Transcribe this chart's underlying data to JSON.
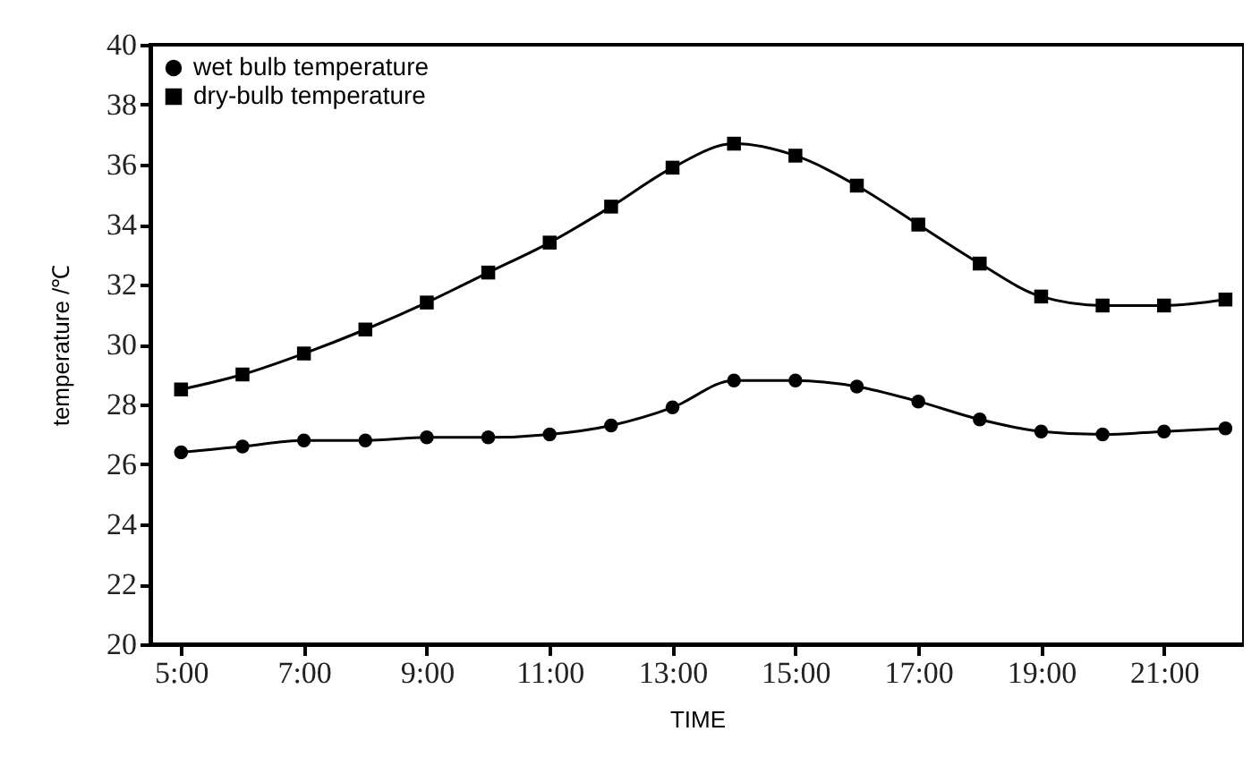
{
  "chart_data": {
    "type": "line",
    "xlabel": "TIME",
    "ylabel": "temperature /℃",
    "x": [
      5,
      6,
      7,
      8,
      9,
      10,
      11,
      12,
      13,
      14,
      15,
      16,
      17,
      18,
      19,
      20,
      21,
      22
    ],
    "series": [
      {
        "name": "wet bulb temperature",
        "color": "#000000",
        "marker": "circle",
        "values": [
          26.4,
          26.6,
          26.8,
          26.8,
          26.9,
          26.9,
          27.0,
          27.3,
          27.9,
          28.8,
          28.8,
          28.6,
          28.1,
          27.5,
          27.1,
          27.0,
          27.1,
          27.2
        ]
      },
      {
        "name": "dry-bulb temperature",
        "color": "#000000",
        "marker": "square",
        "values": [
          28.5,
          29.0,
          29.7,
          30.5,
          31.4,
          32.4,
          33.4,
          34.6,
          35.9,
          36.7,
          36.3,
          35.3,
          34.0,
          32.7,
          31.6,
          31.3,
          31.3,
          31.5
        ]
      }
    ],
    "xlim": [
      4.5,
      22.3
    ],
    "xticks": [
      {
        "value": 5,
        "label": "5:00"
      },
      {
        "value": 7,
        "label": "7:00"
      },
      {
        "value": 9,
        "label": "9:00"
      },
      {
        "value": 11,
        "label": "11:00"
      },
      {
        "value": 13,
        "label": "13:00"
      },
      {
        "value": 15,
        "label": "15:00"
      },
      {
        "value": 17,
        "label": "17:00"
      },
      {
        "value": 19,
        "label": "19:00"
      },
      {
        "value": 21,
        "label": "21:00"
      }
    ],
    "ylim": [
      20,
      40
    ],
    "yticks": [
      20,
      22,
      24,
      26,
      28,
      30,
      32,
      34,
      36,
      38,
      40
    ],
    "grid": false,
    "legend": "top left",
    "line_style": "solid"
  }
}
